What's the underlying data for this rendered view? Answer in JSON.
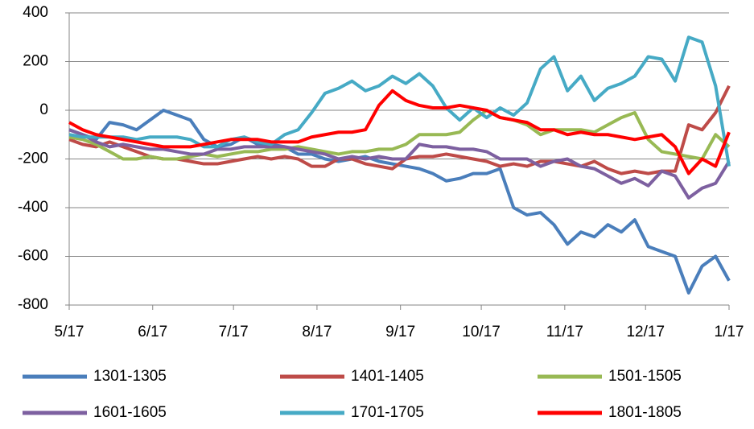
{
  "chart_data": {
    "type": "line",
    "x": [
      0,
      5,
      10,
      15,
      20,
      25,
      30,
      35,
      40,
      45,
      50,
      55,
      60,
      65,
      70,
      75,
      80,
      85,
      90,
      95,
      100,
      105,
      110,
      115,
      120,
      125,
      130,
      135,
      140,
      145,
      150,
      155,
      160,
      165,
      170,
      175,
      180,
      185,
      190,
      195,
      200,
      205,
      210,
      215,
      220,
      225,
      230,
      235,
      240,
      245
    ],
    "xlim": [
      0,
      245
    ],
    "xticks": [
      {
        "value": 0,
        "label": "5/17"
      },
      {
        "value": 31,
        "label": "6/17"
      },
      {
        "value": 61,
        "label": "7/17"
      },
      {
        "value": 92,
        "label": "8/17"
      },
      {
        "value": 123,
        "label": "9/17"
      },
      {
        "value": 153,
        "label": "10/17"
      },
      {
        "value": 184,
        "label": "11/17"
      },
      {
        "value": 214,
        "label": "12/17"
      },
      {
        "value": 245,
        "label": "1/17"
      }
    ],
    "ylim": [
      -800,
      400
    ],
    "yticks": [
      -800,
      -600,
      -400,
      -200,
      0,
      200,
      400
    ],
    "grid": true,
    "legend": "bottom",
    "series": [
      {
        "name": "1301-1305",
        "color": "#4a7ebb",
        "values": [
          -80,
          -100,
          -120,
          -50,
          -60,
          -80,
          -40,
          0,
          -20,
          -40,
          -120,
          -150,
          -140,
          -110,
          -140,
          -140,
          -150,
          -180,
          -180,
          -200,
          -210,
          -200,
          -190,
          -210,
          -220,
          -230,
          -240,
          -260,
          -290,
          -280,
          -260,
          -260,
          -240,
          -400,
          -430,
          -420,
          -470,
          -550,
          -500,
          -520,
          -470,
          -500,
          -450,
          -560,
          -580,
          -600,
          -750,
          -640,
          -600,
          -700
        ]
      },
      {
        "name": "1401-1405",
        "color": "#be4b48",
        "values": [
          -120,
          -140,
          -150,
          -130,
          -150,
          -170,
          -190,
          -200,
          -200,
          -210,
          -220,
          -220,
          -210,
          -200,
          -190,
          -200,
          -190,
          -200,
          -230,
          -230,
          -200,
          -200,
          -220,
          -230,
          -240,
          -200,
          -190,
          -190,
          -180,
          -190,
          -200,
          -210,
          -230,
          -220,
          -230,
          -210,
          -210,
          -220,
          -230,
          -210,
          -240,
          -260,
          -250,
          -260,
          -250,
          -250,
          -60,
          -80,
          -10,
          100
        ]
      },
      {
        "name": "1501-1505",
        "color": "#98b954",
        "values": [
          -110,
          -120,
          -140,
          -170,
          -200,
          -200,
          -190,
          -200,
          -200,
          -190,
          -180,
          -190,
          -180,
          -170,
          -170,
          -160,
          -160,
          -150,
          -160,
          -170,
          -180,
          -170,
          -170,
          -160,
          -160,
          -140,
          -100,
          -100,
          -100,
          -90,
          -40,
          0,
          -30,
          -40,
          -60,
          -100,
          -80,
          -80,
          -80,
          -90,
          -60,
          -30,
          -10,
          -120,
          -170,
          -180,
          -190,
          -200,
          -100,
          -150
        ]
      },
      {
        "name": "1601-1605",
        "color": "#7d60a0",
        "values": [
          -80,
          -100,
          -130,
          -150,
          -140,
          -150,
          -160,
          -160,
          -170,
          -180,
          -180,
          -160,
          -160,
          -150,
          -150,
          -150,
          -150,
          -160,
          -170,
          -180,
          -200,
          -190,
          -200,
          -190,
          -200,
          -200,
          -140,
          -150,
          -150,
          -160,
          -160,
          -170,
          -200,
          -200,
          -200,
          -230,
          -210,
          -200,
          -230,
          -240,
          -270,
          -300,
          -280,
          -310,
          -250,
          -270,
          -360,
          -320,
          -300,
          -210
        ]
      },
      {
        "name": "1701-1705",
        "color": "#46aac5",
        "values": [
          -100,
          -110,
          -110,
          -110,
          -110,
          -120,
          -110,
          -110,
          -110,
          -120,
          -150,
          -150,
          -120,
          -110,
          -130,
          -140,
          -100,
          -80,
          -10,
          70,
          90,
          120,
          80,
          100,
          140,
          110,
          150,
          100,
          10,
          -40,
          10,
          -30,
          10,
          -20,
          30,
          170,
          220,
          80,
          140,
          40,
          90,
          110,
          140,
          220,
          210,
          120,
          300,
          280,
          100,
          -230
        ]
      },
      {
        "name": "1801-1805",
        "color": "#ff0000",
        "values": [
          -50,
          -80,
          -100,
          -110,
          -120,
          -130,
          -140,
          -150,
          -150,
          -150,
          -140,
          -130,
          -120,
          -120,
          -120,
          -130,
          -130,
          -130,
          -110,
          -100,
          -90,
          -90,
          -80,
          20,
          80,
          40,
          20,
          10,
          10,
          20,
          10,
          0,
          -30,
          -40,
          -50,
          -80,
          -80,
          -100,
          -90,
          -100,
          -100,
          -110,
          -120,
          -110,
          -100,
          -150,
          -260,
          -200,
          -230,
          -90
        ]
      }
    ]
  }
}
